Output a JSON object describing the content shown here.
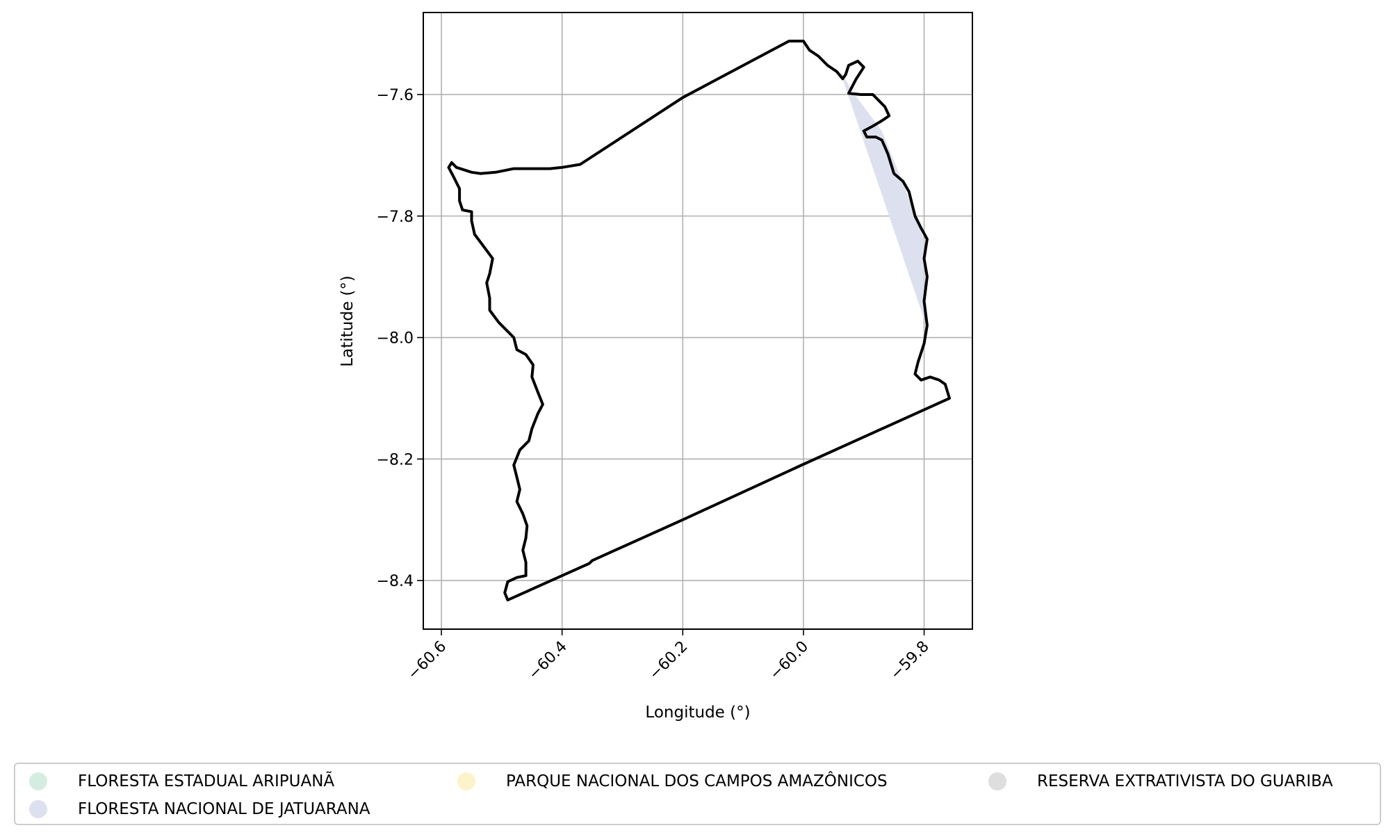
{
  "chart_data": {
    "type": "map",
    "xlabel": "Longitude (°)",
    "ylabel": "Latitude (°)",
    "xlim": [
      -60.63,
      -59.72
    ],
    "ylim": [
      -8.48,
      -7.465
    ],
    "xticks": [
      -60.6,
      -60.4,
      -60.2,
      -60.0,
      -59.8
    ],
    "yticks": [
      -7.6,
      -7.8,
      -8.0,
      -8.2,
      -8.4
    ],
    "xtick_labels": [
      "−60.6",
      "−60.4",
      "−60.2",
      "−60.0",
      "−59.8"
    ],
    "ytick_labels": [
      "−7.6",
      "−7.8",
      "−8.0",
      "−8.2",
      "−8.4"
    ],
    "grid": true,
    "tick_label_rotation_x": 45,
    "legend_position": "bottom",
    "outline": {
      "color": "#000000",
      "points": [
        [
          -60.024,
          -7.512
        ],
        [
          -60.0,
          -7.512
        ],
        [
          -59.99,
          -7.527
        ],
        [
          -59.975,
          -7.537
        ],
        [
          -59.96,
          -7.552
        ],
        [
          -59.945,
          -7.562
        ],
        [
          -59.935,
          -7.574
        ],
        [
          -59.93,
          -7.567
        ],
        [
          -59.925,
          -7.552
        ],
        [
          -59.91,
          -7.545
        ],
        [
          -59.9,
          -7.555
        ],
        [
          -59.913,
          -7.575
        ],
        [
          -59.925,
          -7.598
        ],
        [
          -59.905,
          -7.6
        ],
        [
          -59.885,
          -7.6
        ],
        [
          -59.875,
          -7.61
        ],
        [
          -59.865,
          -7.62
        ],
        [
          -59.858,
          -7.635
        ],
        [
          -59.87,
          -7.643
        ],
        [
          -59.885,
          -7.652
        ],
        [
          -59.9,
          -7.66
        ],
        [
          -59.895,
          -7.67
        ],
        [
          -59.88,
          -7.67
        ],
        [
          -59.87,
          -7.675
        ],
        [
          -59.86,
          -7.698
        ],
        [
          -59.85,
          -7.73
        ],
        [
          -59.835,
          -7.743
        ],
        [
          -59.825,
          -7.76
        ],
        [
          -59.815,
          -7.8
        ],
        [
          -59.805,
          -7.82
        ],
        [
          -59.795,
          -7.838
        ],
        [
          -59.8,
          -7.87
        ],
        [
          -59.795,
          -7.9
        ],
        [
          -59.8,
          -7.94
        ],
        [
          -59.795,
          -7.98
        ],
        [
          -59.8,
          -8.01
        ],
        [
          -59.81,
          -8.04
        ],
        [
          -59.815,
          -8.06
        ],
        [
          -59.805,
          -8.07
        ],
        [
          -59.79,
          -8.065
        ],
        [
          -59.775,
          -8.07
        ],
        [
          -59.765,
          -8.077
        ],
        [
          -59.758,
          -8.1
        ],
        [
          -60.003,
          -8.21
        ],
        [
          -60.2,
          -8.3
        ],
        [
          -60.35,
          -8.367
        ],
        [
          -60.355,
          -8.372
        ],
        [
          -60.49,
          -8.432
        ],
        [
          -60.495,
          -8.42
        ],
        [
          -60.49,
          -8.402
        ],
        [
          -60.475,
          -8.395
        ],
        [
          -60.46,
          -8.392
        ],
        [
          -60.46,
          -8.37
        ],
        [
          -60.465,
          -8.35
        ],
        [
          -60.46,
          -8.33
        ],
        [
          -60.458,
          -8.31
        ],
        [
          -60.465,
          -8.29
        ],
        [
          -60.475,
          -8.27
        ],
        [
          -60.47,
          -8.25
        ],
        [
          -60.475,
          -8.23
        ],
        [
          -60.48,
          -8.21
        ],
        [
          -60.47,
          -8.185
        ],
        [
          -60.455,
          -8.17
        ],
        [
          -60.45,
          -8.15
        ],
        [
          -60.44,
          -8.125
        ],
        [
          -60.432,
          -8.11
        ],
        [
          -60.44,
          -8.09
        ],
        [
          -60.45,
          -8.065
        ],
        [
          -60.448,
          -8.045
        ],
        [
          -60.46,
          -8.028
        ],
        [
          -60.475,
          -8.02
        ],
        [
          -60.48,
          -8.0
        ],
        [
          -60.505,
          -7.975
        ],
        [
          -60.52,
          -7.955
        ],
        [
          -60.52,
          -7.935
        ],
        [
          -60.525,
          -7.91
        ],
        [
          -60.52,
          -7.895
        ],
        [
          -60.515,
          -7.87
        ],
        [
          -60.53,
          -7.85
        ],
        [
          -60.545,
          -7.83
        ],
        [
          -60.55,
          -7.808
        ],
        [
          -60.55,
          -7.793
        ],
        [
          -60.565,
          -7.79
        ],
        [
          -60.57,
          -7.775
        ],
        [
          -60.57,
          -7.755
        ],
        [
          -60.58,
          -7.735
        ],
        [
          -60.588,
          -7.72
        ],
        [
          -60.583,
          -7.712
        ],
        [
          -60.575,
          -7.72
        ],
        [
          -60.55,
          -7.728
        ],
        [
          -60.535,
          -7.73
        ],
        [
          -60.51,
          -7.728
        ],
        [
          -60.48,
          -7.722
        ],
        [
          -60.46,
          -7.722
        ],
        [
          -60.44,
          -7.722
        ],
        [
          -60.42,
          -7.722
        ],
        [
          -60.4,
          -7.72
        ],
        [
          -60.37,
          -7.715
        ],
        [
          -60.2,
          -7.605
        ],
        [
          -60.024,
          -7.512
        ]
      ]
    },
    "shaded_regions": [
      {
        "name": "FLORESTA NACIONAL DE JATUARANA",
        "color": "#dde1ef",
        "points": [
          [
            -59.94,
            -7.56
          ],
          [
            -59.915,
            -7.6
          ],
          [
            -59.87,
            -7.66
          ],
          [
            -59.835,
            -7.745
          ],
          [
            -59.8,
            -7.84
          ],
          [
            -59.8,
            -7.97
          ]
        ]
      }
    ]
  },
  "legend": {
    "items": [
      {
        "label": "FLORESTA ESTADUAL ARIPUANÃ",
        "color": "#d5ede1"
      },
      {
        "label": "FLORESTA NACIONAL DE JATUARANA",
        "color": "#dde1ef"
      },
      {
        "label": "PARQUE NACIONAL DOS CAMPOS AMAZÔNICOS",
        "color": "#fdf3cb"
      },
      {
        "label": "RESERVA EXTRATIVISTA DO GUARIBA",
        "color": "#dedede"
      }
    ]
  }
}
